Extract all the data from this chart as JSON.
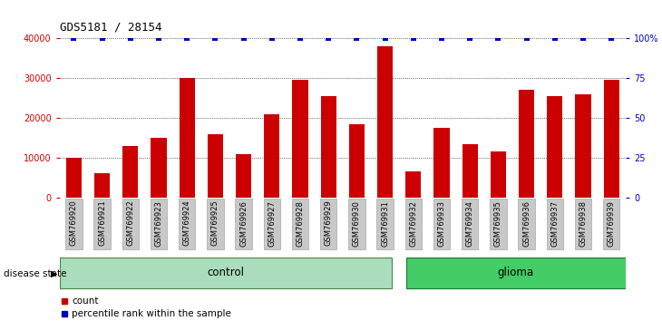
{
  "title": "GDS5181 / 28154",
  "samples": [
    "GSM769920",
    "GSM769921",
    "GSM769922",
    "GSM769923",
    "GSM769924",
    "GSM769925",
    "GSM769926",
    "GSM769927",
    "GSM769928",
    "GSM769929",
    "GSM769930",
    "GSM769931",
    "GSM769932",
    "GSM769933",
    "GSM769934",
    "GSM769935",
    "GSM769936",
    "GSM769937",
    "GSM769938",
    "GSM769939"
  ],
  "counts": [
    10000,
    6000,
    13000,
    15000,
    30000,
    16000,
    11000,
    21000,
    29500,
    25500,
    18500,
    38000,
    6500,
    17500,
    13500,
    11500,
    27000,
    25500,
    26000,
    29500
  ],
  "percentile_ranks": [
    100,
    100,
    100,
    100,
    100,
    100,
    100,
    100,
    100,
    100,
    100,
    100,
    100,
    100,
    100,
    100,
    100,
    100,
    100,
    100
  ],
  "bar_color": "#CC0000",
  "dot_color": "#0000BB",
  "left_axis_color": "#CC0000",
  "right_axis_color": "#0000BB",
  "ylim_left": [
    0,
    40000
  ],
  "ylim_right": [
    0,
    100
  ],
  "yticks_left": [
    0,
    10000,
    20000,
    30000,
    40000
  ],
  "ytick_labels_left": [
    "0",
    "10000",
    "20000",
    "30000",
    "40000"
  ],
  "yticks_right": [
    0,
    25,
    50,
    75,
    100
  ],
  "ytick_labels_right": [
    "0",
    "25",
    "50",
    "75",
    "100%"
  ],
  "n_control": 12,
  "n_glioma": 8,
  "control_label": "control",
  "glioma_label": "glioma",
  "disease_state_label": "disease state",
  "control_color_light": "#AAEEBB",
  "control_color_dark": "#55DD88",
  "glioma_color": "#44DD66",
  "bg_color": "#C8C8C8",
  "legend_count_label": "count",
  "legend_pct_label": "percentile rank within the sample",
  "bar_width": 0.55
}
